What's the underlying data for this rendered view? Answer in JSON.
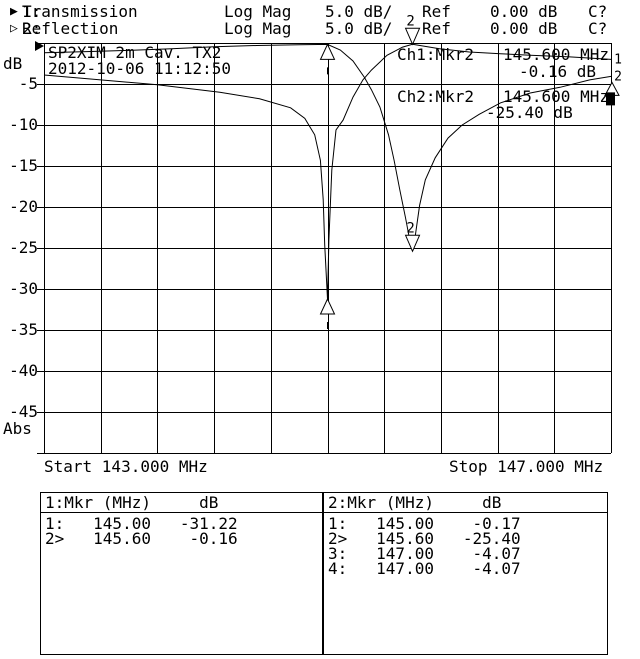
{
  "header": {
    "channels": [
      {
        "marker": "▶",
        "num": "1:",
        "name": "Transmission",
        "format": "Log Mag",
        "scale": "5.0 dB/",
        "ref_label": "Ref",
        "ref_value": "0.00 dB",
        "cal_status": "C?"
      },
      {
        "marker": "▷",
        "num": "2:",
        "name": "Reflection",
        "format": "Log Mag",
        "scale": "5.0 dB/",
        "ref_label": "Ref",
        "ref_value": "0.00 dB",
        "cal_status": "C?"
      }
    ]
  },
  "plot": {
    "title": "SP2XIM 2m Cav. TX2",
    "timestamp": "2012-10-06 11:12:50",
    "y_axis_unit": "dB",
    "y_axis_bottom_label": "Abs",
    "y_tick_labels": [
      "-5",
      "-10",
      "-15",
      "-20",
      "-25",
      "-30",
      "-35",
      "-40",
      "-45"
    ],
    "start_label": "Start 143.000 MHz",
    "stop_label": "Stop 147.000 MHz",
    "ch1_readout": {
      "label": "Ch1:Mkr2",
      "freq": "145.600 MHz",
      "value": "-0.16 dB"
    },
    "ch2_readout": {
      "label": "Ch2:Mkr2",
      "freq": "145.600 MHz",
      "value": "-25.40 dB"
    }
  },
  "chart_data": {
    "type": "line",
    "title": "SP2XIM 2m Cav. TX2",
    "xlabel": "Frequency (MHz)",
    "ylabel": "dB",
    "x_range": [
      143.0,
      147.0
    ],
    "y_range": [
      -50,
      0
    ],
    "x_divisions": 10,
    "y_divisions": 10,
    "y_per_div": 5.0,
    "grid": true,
    "series": [
      {
        "name": "Transmission",
        "points": [
          [
            143.0,
            -3.9
          ],
          [
            143.4,
            -4.5
          ],
          [
            143.8,
            -5.1
          ],
          [
            144.24,
            -6.0
          ],
          [
            144.52,
            -6.8
          ],
          [
            144.74,
            -7.9
          ],
          [
            144.84,
            -9.2
          ],
          [
            144.91,
            -11.2
          ],
          [
            144.95,
            -14.3
          ],
          [
            144.97,
            -19.1
          ],
          [
            144.98,
            -24.6
          ],
          [
            145.0,
            -31.22
          ],
          [
            145.01,
            -24.0
          ],
          [
            145.03,
            -15.5
          ],
          [
            145.06,
            -10.6
          ],
          [
            145.11,
            -9.4
          ],
          [
            145.18,
            -6.6
          ],
          [
            145.25,
            -4.5
          ],
          [
            145.31,
            -3.3
          ],
          [
            145.42,
            -1.5
          ],
          [
            145.53,
            -0.5
          ],
          [
            145.6,
            -0.16
          ],
          [
            145.79,
            -0.7
          ],
          [
            146.0,
            -1.1
          ],
          [
            146.22,
            -1.3
          ],
          [
            146.43,
            -1.5
          ],
          [
            146.71,
            -1.7
          ],
          [
            147.0,
            -2.0
          ]
        ]
      },
      {
        "name": "Reflection",
        "points": [
          [
            143.0,
            -1.2
          ],
          [
            143.3,
            -1.05
          ],
          [
            143.6,
            -0.9
          ],
          [
            143.9,
            -0.7
          ],
          [
            144.2,
            -0.45
          ],
          [
            144.5,
            -0.3
          ],
          [
            144.8,
            -0.22
          ],
          [
            145.0,
            -0.17
          ],
          [
            145.09,
            -0.85
          ],
          [
            145.18,
            -2.2
          ],
          [
            145.26,
            -4.2
          ],
          [
            145.31,
            -5.7
          ],
          [
            145.37,
            -7.8
          ],
          [
            145.43,
            -11.2
          ],
          [
            145.47,
            -14.3
          ],
          [
            145.51,
            -17.9
          ],
          [
            145.55,
            -21.3
          ],
          [
            145.58,
            -24.0
          ],
          [
            145.6,
            -25.4
          ],
          [
            145.62,
            -23.4
          ],
          [
            145.65,
            -19.8
          ],
          [
            145.69,
            -16.7
          ],
          [
            145.76,
            -14.0
          ],
          [
            145.85,
            -11.6
          ],
          [
            145.95,
            -10.0
          ],
          [
            146.07,
            -8.7
          ],
          [
            146.22,
            -7.3
          ],
          [
            146.43,
            -6.1
          ],
          [
            146.64,
            -5.4
          ],
          [
            146.85,
            -4.5
          ],
          [
            147.0,
            -4.07
          ]
        ]
      }
    ],
    "markers": [
      {
        "trace": 0,
        "n": "1",
        "f": 145.0,
        "db": -31.22,
        "style": "below"
      },
      {
        "trace": 0,
        "n": "2",
        "f": 145.6,
        "db": -0.16,
        "style": "above-label"
      },
      {
        "trace": 1,
        "n": "1",
        "f": 145.0,
        "db": -0.17,
        "style": "below"
      },
      {
        "trace": 1,
        "n": "2",
        "f": 145.6,
        "db": -25.4,
        "style": "above-label"
      },
      {
        "trace": 1,
        "n": "3",
        "f": 147.0,
        "db": -4.07,
        "style": "edge-triangle"
      },
      {
        "trace": 1,
        "n": "4",
        "f": 147.0,
        "db": -4.07,
        "style": "edge-filled"
      }
    ],
    "trace_end_labels": [
      {
        "trace": 0,
        "label": "1"
      },
      {
        "trace": 1,
        "label": "2"
      }
    ]
  },
  "tables": [
    {
      "num": "1:",
      "header_label": "Mkr (MHz)",
      "header_unit": "dB",
      "rows": [
        {
          "n": "1:",
          "f": "145.00",
          "v": "-31.22"
        },
        {
          "n": "2>",
          "f": "145.60",
          "v": "-0.16"
        }
      ]
    },
    {
      "num": "2:",
      "header_label": "Mkr (MHz)",
      "header_unit": "dB",
      "rows": [
        {
          "n": "1:",
          "f": "145.00",
          "v": "-0.17"
        },
        {
          "n": "2>",
          "f": "145.60",
          "v": "-25.40"
        },
        {
          "n": "3:",
          "f": "147.00",
          "v": "-4.07"
        },
        {
          "n": "4:",
          "f": "147.00",
          "v": "-4.07"
        }
      ]
    }
  ]
}
